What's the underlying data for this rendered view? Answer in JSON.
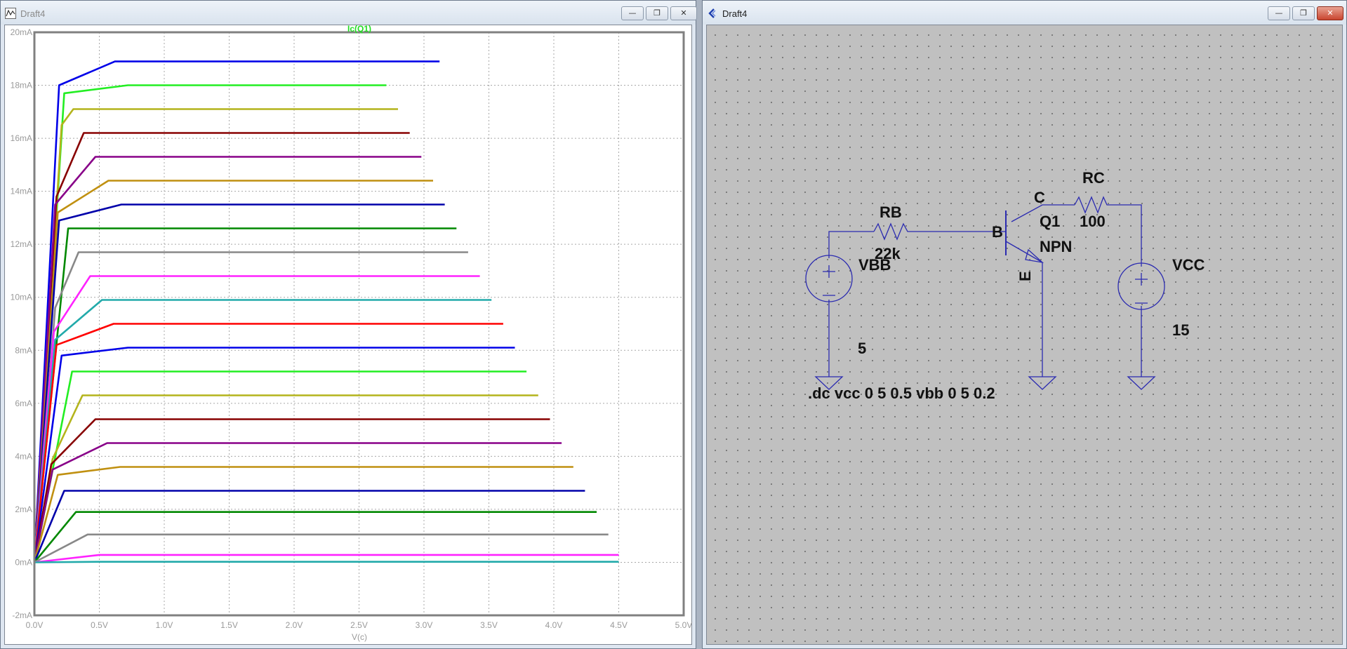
{
  "plot_window": {
    "title": "Draft4",
    "trace_name": "Ic(Q1)",
    "xlabel": "V(c)",
    "controls": {
      "minimize": "—",
      "restore": "❐",
      "close": "✕"
    }
  },
  "schematic_window": {
    "title": "Draft4",
    "controls": {
      "minimize": "—",
      "restore": "❐",
      "close": "✕"
    },
    "labels": {
      "rb": "RB",
      "rb_value": "22k",
      "rc": "RC",
      "rc_value": "100",
      "q1": "Q1",
      "q1_model": "NPN",
      "pin_b": "B",
      "pin_c": "C",
      "pin_e": "E",
      "vbb": "VBB",
      "vbb_value": "5",
      "vcc": "VCC",
      "vcc_value": "15",
      "directive": ".dc vcc 0 5 0.5 vbb 0 5 0.2"
    }
  },
  "chart_data": {
    "type": "line",
    "title": "Ic(Q1)",
    "xlabel": "V(c)",
    "ylabel": "",
    "xlim": [
      0,
      5
    ],
    "ylim": [
      -2,
      20
    ],
    "grid": true,
    "x_ticks": [
      "0.0V",
      "0.5V",
      "1.0V",
      "1.5V",
      "2.0V",
      "2.5V",
      "3.0V",
      "3.5V",
      "4.0V",
      "4.5V",
      "5.0V"
    ],
    "y_ticks": [
      "-2mA",
      "0mA",
      "2mA",
      "4mA",
      "6mA",
      "8mA",
      "10mA",
      "12mA",
      "14mA",
      "16mA",
      "18mA",
      "20mA"
    ],
    "series": [
      {
        "color": "#0000e8",
        "points": [
          [
            0,
            0
          ],
          [
            0.19,
            18
          ],
          [
            0.62,
            18.9
          ],
          [
            3.12,
            18.9
          ]
        ]
      },
      {
        "color": "#22ee22",
        "points": [
          [
            0,
            0
          ],
          [
            0.23,
            17.7
          ],
          [
            0.72,
            18
          ],
          [
            2.71,
            18
          ]
        ]
      },
      {
        "color": "#b4b41c",
        "points": [
          [
            0,
            0
          ],
          [
            0.21,
            16.5
          ],
          [
            0.3,
            17.1
          ],
          [
            2.8,
            17.1
          ]
        ]
      },
      {
        "color": "#880000",
        "points": [
          [
            0,
            0
          ],
          [
            0.17,
            13.8
          ],
          [
            0.38,
            16.2
          ],
          [
            2.89,
            16.2
          ]
        ]
      },
      {
        "color": "#880088",
        "points": [
          [
            0,
            0
          ],
          [
            0.16,
            13.5
          ],
          [
            0.47,
            15.3
          ],
          [
            2.98,
            15.3
          ]
        ]
      },
      {
        "color": "#c09010",
        "points": [
          [
            0,
            0
          ],
          [
            0.18,
            13.2
          ],
          [
            0.57,
            14.4
          ],
          [
            3.07,
            14.4
          ]
        ]
      },
      {
        "color": "#0000aa",
        "points": [
          [
            0,
            0
          ],
          [
            0.19,
            12.9
          ],
          [
            0.67,
            13.5
          ],
          [
            3.16,
            13.5
          ]
        ]
      },
      {
        "color": "#008800",
        "points": [
          [
            0,
            0
          ],
          [
            0.26,
            12.6
          ],
          [
            0.75,
            12.6
          ],
          [
            3.25,
            12.6
          ]
        ]
      },
      {
        "color": "#888888",
        "points": [
          [
            0,
            0
          ],
          [
            0.16,
            9.6
          ],
          [
            0.34,
            11.7
          ],
          [
            3.34,
            11.7
          ]
        ]
      },
      {
        "color": "#ff22ff",
        "points": [
          [
            0,
            0
          ],
          [
            0.15,
            8.7
          ],
          [
            0.43,
            10.8
          ],
          [
            3.43,
            10.8
          ]
        ]
      },
      {
        "color": "#22aaaa",
        "points": [
          [
            0,
            0
          ],
          [
            0.16,
            8.4
          ],
          [
            0.52,
            9.9
          ],
          [
            3.52,
            9.9
          ]
        ]
      },
      {
        "color": "#ff0000",
        "points": [
          [
            0,
            0
          ],
          [
            0.17,
            8.2
          ],
          [
            0.61,
            9
          ],
          [
            3.61,
            9
          ]
        ]
      },
      {
        "color": "#0000e8",
        "points": [
          [
            0,
            0
          ],
          [
            0.21,
            7.8
          ],
          [
            0.72,
            8.1
          ],
          [
            3.7,
            8.1
          ]
        ]
      },
      {
        "color": "#22ee22",
        "points": [
          [
            0,
            0
          ],
          [
            0.29,
            7.2
          ],
          [
            0.78,
            7.2
          ],
          [
            3.79,
            7.2
          ]
        ]
      },
      {
        "color": "#b4b41c",
        "points": [
          [
            0,
            0
          ],
          [
            0.14,
            3.9
          ],
          [
            0.37,
            6.3
          ],
          [
            3.88,
            6.3
          ]
        ]
      },
      {
        "color": "#880000",
        "points": [
          [
            0,
            0
          ],
          [
            0.13,
            3.7
          ],
          [
            0.47,
            5.4
          ],
          [
            3.97,
            5.4
          ]
        ]
      },
      {
        "color": "#880088",
        "points": [
          [
            0,
            0
          ],
          [
            0.14,
            3.5
          ],
          [
            0.56,
            4.5
          ],
          [
            4.06,
            4.5
          ]
        ]
      },
      {
        "color": "#c09010",
        "points": [
          [
            0,
            0
          ],
          [
            0.18,
            3.3
          ],
          [
            0.66,
            3.6
          ],
          [
            4.15,
            3.6
          ]
        ]
      },
      {
        "color": "#0000aa",
        "points": [
          [
            0,
            0
          ],
          [
            0.23,
            2.7
          ],
          [
            0.72,
            2.7
          ],
          [
            4.24,
            2.7
          ]
        ]
      },
      {
        "color": "#008800",
        "points": [
          [
            0,
            0
          ],
          [
            0.32,
            1.9
          ],
          [
            0.81,
            1.9
          ],
          [
            4.33,
            1.9
          ]
        ]
      },
      {
        "color": "#888888",
        "points": [
          [
            0,
            0
          ],
          [
            0.41,
            1.05
          ],
          [
            0.9,
            1.05
          ],
          [
            4.42,
            1.05
          ]
        ]
      },
      {
        "color": "#ff22ff",
        "points": [
          [
            0,
            0
          ],
          [
            0.5,
            0.28
          ],
          [
            1.0,
            0.28
          ],
          [
            4.5,
            0.28
          ]
        ]
      },
      {
        "color": "#22aaaa",
        "points": [
          [
            0,
            0
          ],
          [
            0.5,
            0.02
          ],
          [
            1.0,
            0.02
          ],
          [
            4.5,
            0.02
          ]
        ]
      }
    ]
  },
  "colors": {
    "trace_title": "#22dd22",
    "wire": "#2b2bb0",
    "grid": "#a8a8a8"
  },
  "icons": {
    "plot_window_icon": "waveform-window-icon",
    "schematic_window_icon": "ltspice-logo-icon"
  }
}
